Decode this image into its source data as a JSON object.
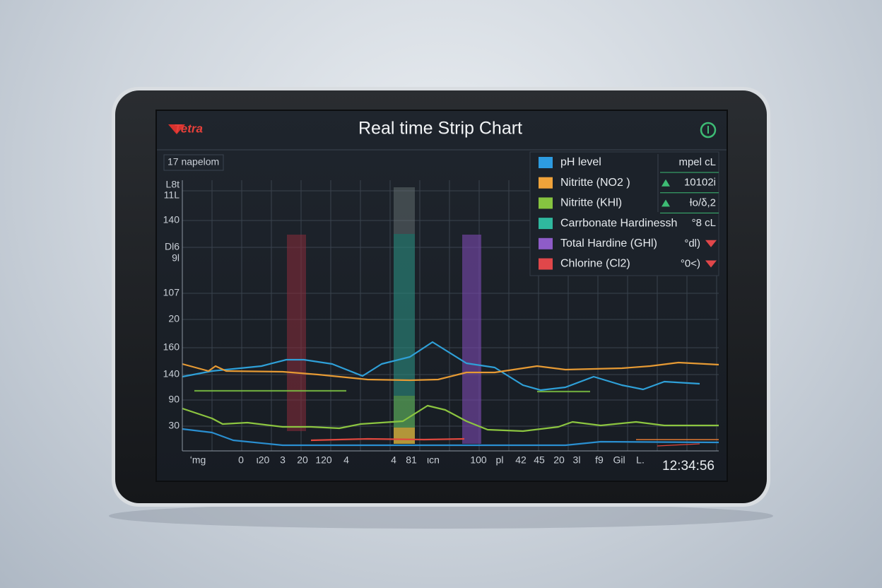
{
  "header": {
    "logo": "Tetra",
    "title": "Real time Strip Chart"
  },
  "panel_label": "17 napelom",
  "y_axis_labels": [
    "L8t",
    "11L",
    "140",
    "Dl6",
    "9l",
    "107",
    "20",
    "160",
    "140",
    "90",
    "30"
  ],
  "x_axis_labels": [
    "ʻmg",
    "0",
    "ι20",
    "3",
    "20",
    "120",
    "4",
    "4",
    "81",
    "ιcn",
    "100",
    "pl",
    "42",
    "45",
    "20",
    "3l",
    "f9",
    "Gil",
    "L."
  ],
  "legend": {
    "rows": [
      {
        "name": "pH level",
        "reading": "mpel cL"
      },
      {
        "name": "Nitritte (NO2 )",
        "reading": "10102i"
      },
      {
        "name": "Nitritte (KHl)",
        "reading": "Ɨo/δ,2"
      },
      {
        "name": "Carrbonate Hardinessh",
        "reading": "°8 cL"
      },
      {
        "name": "Total Hardine (GHl)",
        "reading": "°dl)"
      },
      {
        "name": "Chlorine (Cl2)",
        "reading": "°0<)"
      }
    ]
  },
  "clock": "12:34:56"
}
